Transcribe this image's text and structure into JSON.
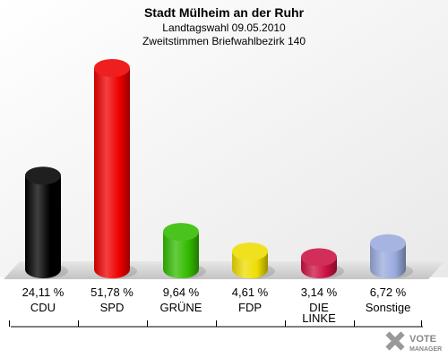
{
  "chart_data": {
    "type": "bar",
    "title": "Stadt Mülheim an der Ruhr",
    "subtitle": "Landtagswahl 09.05.2010",
    "subtitle2": "Zweitstimmen Briefwahlbezirk 140",
    "categories": [
      "CDU",
      "SPD",
      "GRÜNE",
      "FDP",
      "DIE LINKE",
      "Sonstige"
    ],
    "category_lines": [
      [
        "CDU"
      ],
      [
        "SPD"
      ],
      [
        "GRÜNE"
      ],
      [
        "FDP"
      ],
      [
        "DIE",
        "LINKE"
      ],
      [
        "Sonstige"
      ]
    ],
    "values": [
      24.11,
      51.78,
      9.64,
      4.61,
      3.14,
      6.72
    ],
    "value_labels": [
      "24,11 %",
      "51,78 %",
      "9,64 %",
      "4,61 %",
      "3,14 %",
      "6,72 %"
    ],
    "colors": [
      "#000000",
      "#ee0000",
      "#33bb00",
      "#eedd00",
      "#cc1144",
      "#99aadd"
    ],
    "ylim": [
      0,
      55
    ],
    "grid": false,
    "legend": "none"
  },
  "logo": {
    "line1": "VOTE",
    "line2": "MANAGER"
  }
}
